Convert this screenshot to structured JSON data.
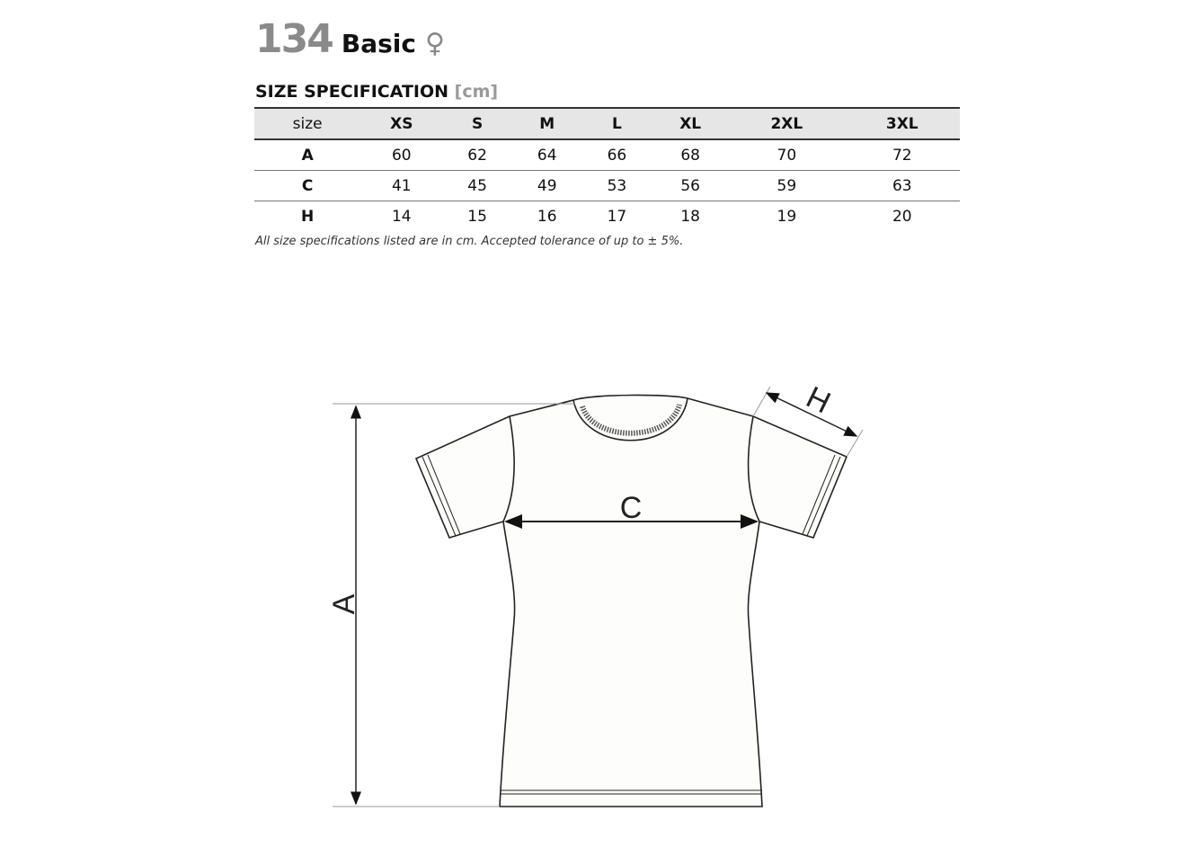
{
  "header": {
    "model_number": "134",
    "model_name": "Basic",
    "gender_symbol": "♀"
  },
  "spec": {
    "title": "SIZE SPECIFICATION",
    "unit": "[cm]"
  },
  "table": {
    "columns": [
      "size",
      "XS",
      "S",
      "M",
      "L",
      "XL",
      "2XL",
      "3XL"
    ],
    "rows": [
      [
        "A",
        "60",
        "62",
        "64",
        "66",
        "68",
        "70",
        "72"
      ],
      [
        "C",
        "41",
        "45",
        "49",
        "53",
        "56",
        "59",
        "63"
      ],
      [
        "H",
        "14",
        "15",
        "16",
        "17",
        "18",
        "19",
        "20"
      ]
    ]
  },
  "note": "All size specifications listed are in cm. Accepted tolerance of up to ± 5%.",
  "diagram": {
    "labels": {
      "a": "A",
      "c": "C",
      "h": "H"
    }
  }
}
